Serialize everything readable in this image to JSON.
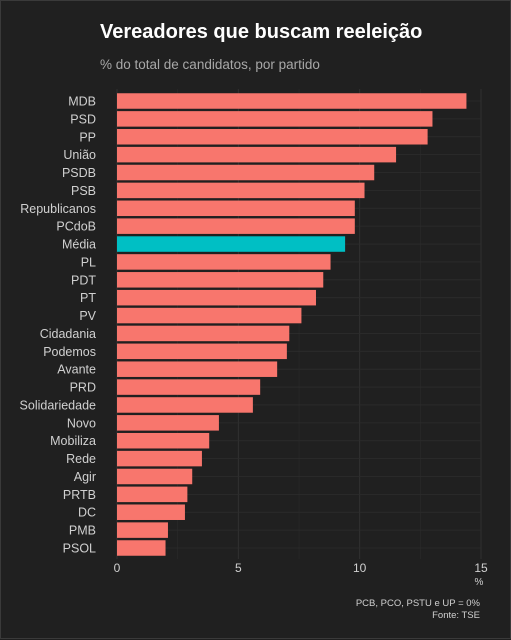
{
  "chart_data": {
    "type": "bar",
    "orientation": "horizontal",
    "title": "Vereadores que buscam reeleição",
    "subtitle": "% do total de candidatos, por partido",
    "xlabel": "%",
    "ylabel": "",
    "xlim": [
      0,
      15
    ],
    "xticks": [
      0,
      5,
      10,
      15
    ],
    "grid": true,
    "categories": [
      "MDB",
      "PSD",
      "PP",
      "União",
      "PSDB",
      "PSB",
      "Republicanos",
      "PCdoB",
      "Média",
      "PL",
      "PDT",
      "PT",
      "PV",
      "Cidadania",
      "Podemos",
      "Avante",
      "PRD",
      "Solidariedade",
      "Novo",
      "Mobiliza",
      "Rede",
      "Agir",
      "PRTB",
      "DC",
      "PMB",
      "PSOL"
    ],
    "values": [
      14.4,
      13.0,
      12.8,
      11.5,
      10.6,
      10.2,
      9.8,
      9.8,
      9.4,
      8.8,
      8.5,
      8.2,
      7.6,
      7.1,
      7.0,
      6.6,
      5.9,
      5.6,
      4.2,
      3.8,
      3.5,
      3.1,
      2.9,
      2.8,
      2.1,
      2.0
    ],
    "highlight": "Média",
    "colors": {
      "bar": "#f8766d",
      "highlight": "#00bfc4",
      "background": "#202020",
      "grid": "#333333",
      "text": "#d0d0d0"
    }
  },
  "notes": {
    "zero_parties": "PCB, PCO, PSTU e UP = 0%",
    "source": "Fonte: TSE"
  }
}
